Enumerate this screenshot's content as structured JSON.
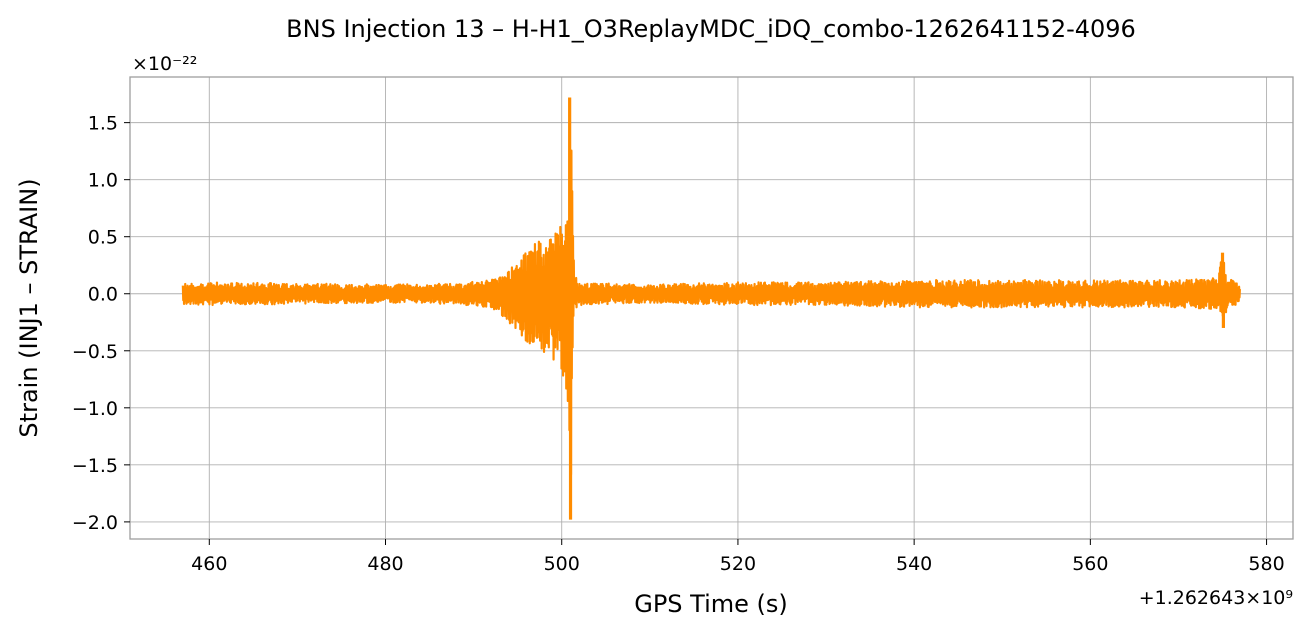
{
  "chart_data": {
    "type": "line",
    "title": "BNS Injection 13 – H-H1_O3ReplayMDC_iDQ_combo-1262641152-4096",
    "xlabel": "GPS Time (s)",
    "ylabel": "Strain (INJ1 – STRAIN)",
    "y_multiplier_label": "×10⁻²²",
    "x_offset_label": "+1.262643×10⁹",
    "x_offset": 1262643000,
    "xlim": [
      451,
      583
    ],
    "ylim": [
      -2.15,
      1.9
    ],
    "x_ticks": [
      460,
      480,
      500,
      520,
      540,
      560,
      580
    ],
    "x_tick_labels": [
      "460",
      "480",
      "500",
      "520",
      "540",
      "560",
      "580"
    ],
    "y_ticks": [
      1.5,
      1.0,
      0.5,
      0.0,
      -0.5,
      -1.0,
      -1.5,
      -2.0
    ],
    "y_tick_labels": [
      "1.5",
      "1.0",
      "0.5",
      "0.0",
      "−0.5",
      "−1.0",
      "−1.5",
      "−2.0"
    ],
    "grid": true,
    "line_color": "#ff8c00",
    "series": [
      {
        "envelope_x": [
          457,
          460,
          470,
          480,
          488,
          492,
          494,
          496,
          498,
          499.5,
          500.3,
          500.8,
          501.0,
          501.4,
          502,
          510,
          520,
          530,
          540,
          550,
          560,
          570,
          574.5,
          575,
          575.5,
          577
        ],
        "envelope_upper": [
          0.09,
          0.1,
          0.09,
          0.08,
          0.09,
          0.12,
          0.2,
          0.38,
          0.5,
          0.55,
          0.68,
          0.95,
          1.72,
          0.2,
          0.1,
          0.08,
          0.1,
          0.1,
          0.12,
          0.12,
          0.12,
          0.12,
          0.14,
          0.36,
          0.14,
          0.08
        ],
        "envelope_lower": [
          -0.09,
          -0.1,
          -0.09,
          -0.08,
          -0.09,
          -0.12,
          -0.25,
          -0.45,
          -0.55,
          -0.6,
          -0.75,
          -1.0,
          -1.98,
          -0.2,
          -0.1,
          -0.08,
          -0.1,
          -0.1,
          -0.12,
          -0.12,
          -0.12,
          -0.12,
          -0.14,
          -0.3,
          -0.14,
          -0.08
        ]
      }
    ]
  }
}
